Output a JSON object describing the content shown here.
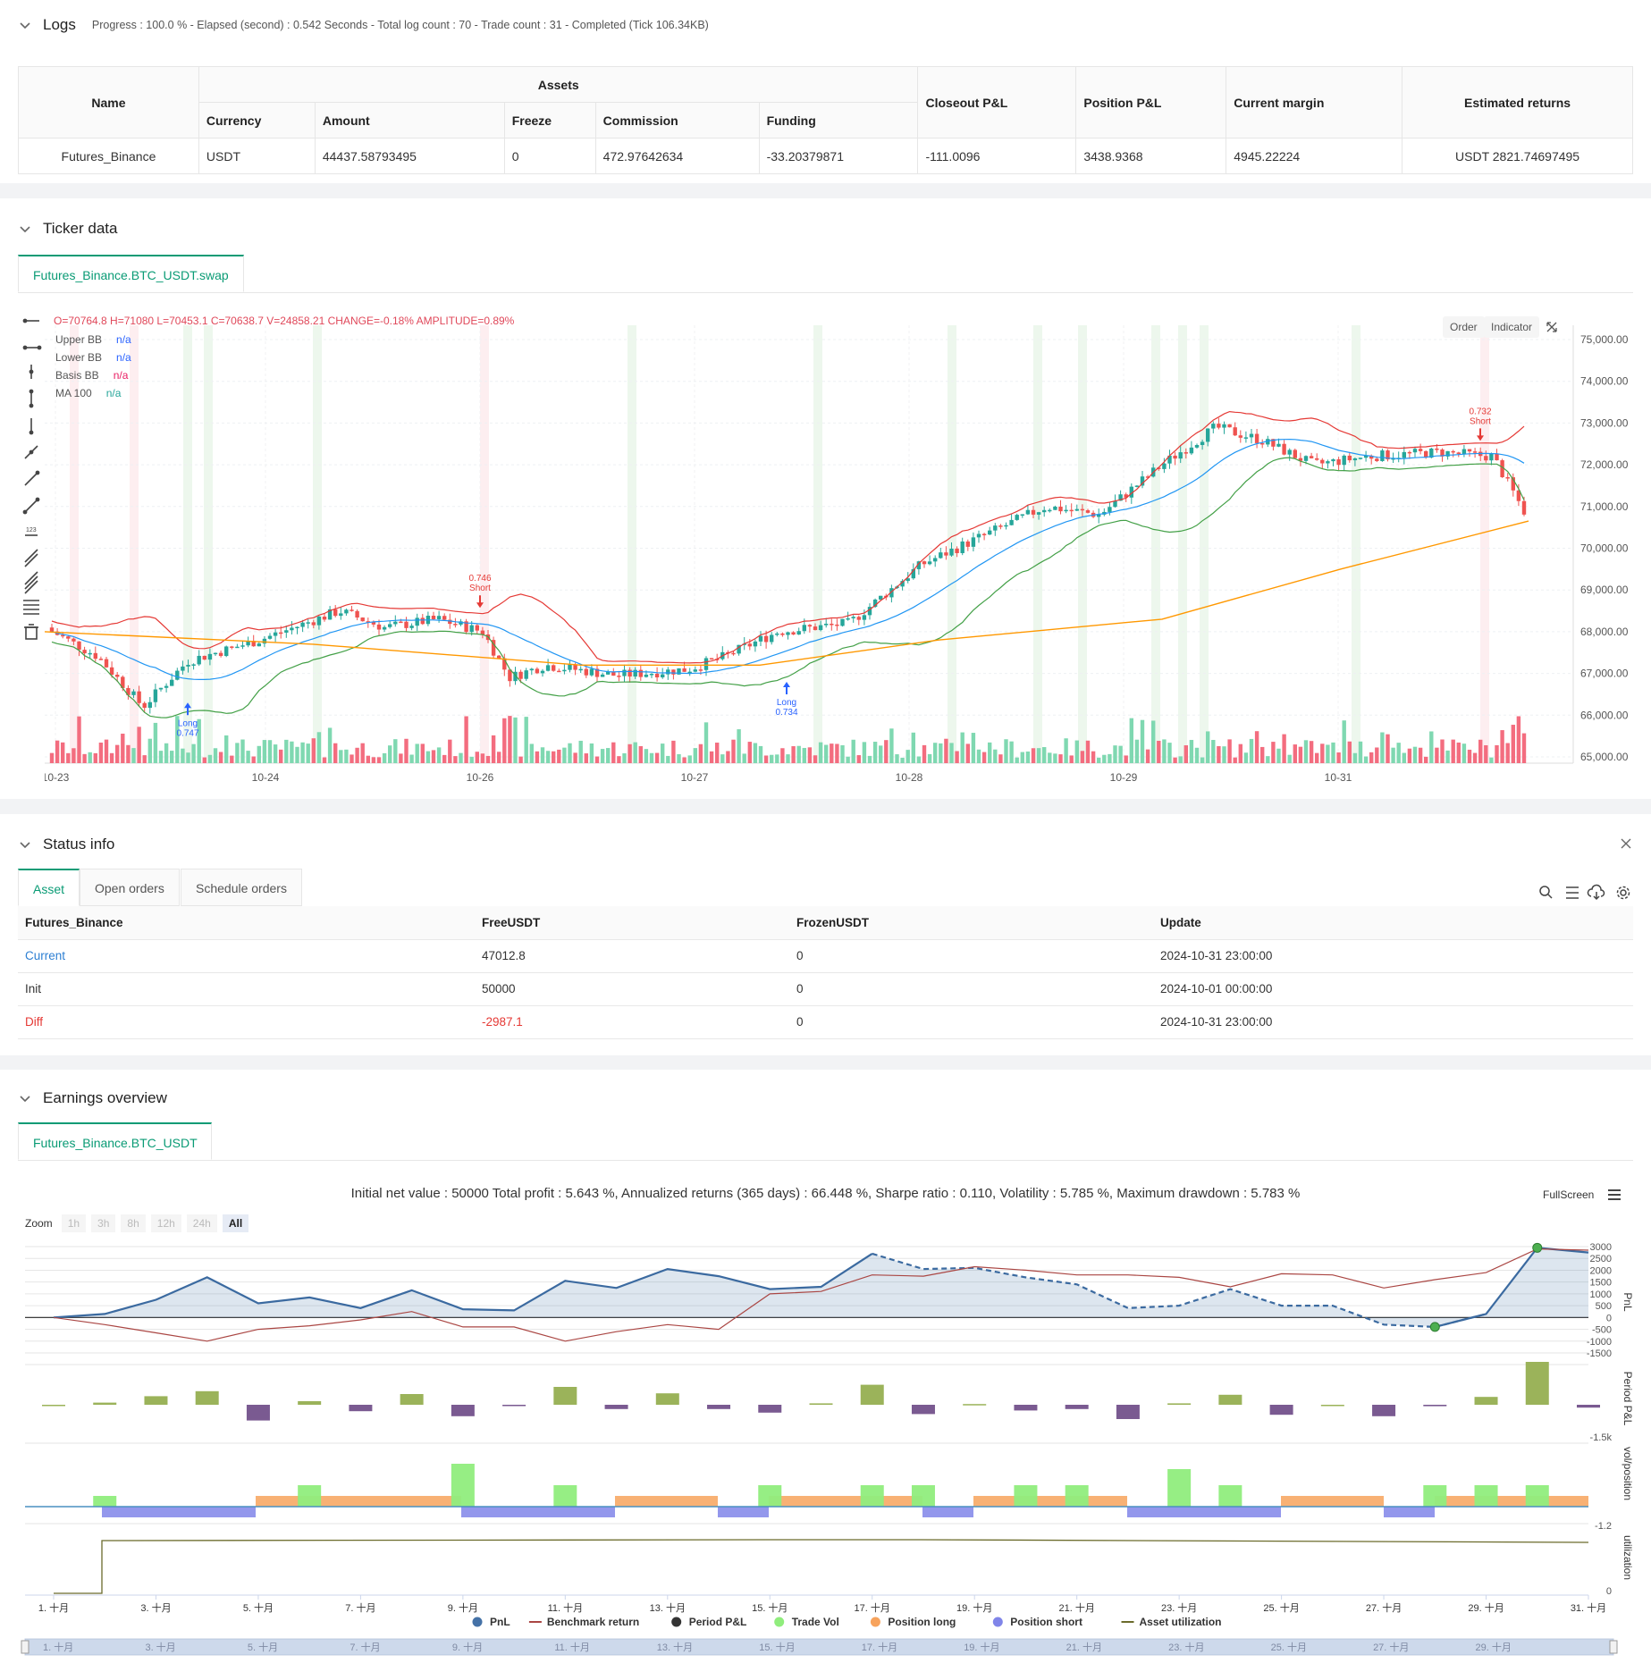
{
  "logs": {
    "title": "Logs",
    "meta": "Progress : 100.0 % - Elapsed (second) : 0.542  Seconds - Total log count : 70 - Trade count : 31 - Completed (Tick 106.34KB)",
    "headers": {
      "name": "Name",
      "assets": "Assets",
      "currency": "Currency",
      "amount": "Amount",
      "freeze": "Freeze",
      "commission": "Commission",
      "funding": "Funding",
      "closeout": "Closeout P&L",
      "position": "Position P&L",
      "margin": "Current margin",
      "returns": "Estimated returns"
    },
    "row": {
      "name": "Futures_Binance",
      "currency": "USDT",
      "amount": "44437.58793495",
      "freeze": "0",
      "commission": "472.97642634",
      "funding": "-33.20379871",
      "closeout": "-111.0096",
      "position": "3438.9368",
      "margin": "4945.22224",
      "returns": "USDT 2821.74697495"
    }
  },
  "ticker": {
    "title": "Ticker data",
    "tab": "Futures_Binance.BTC_USDT.swap",
    "ohlc": "O=70764.8  H=71080  L=70453.1  C=70638.7  V=24858.21  CHANGE=-0.18%  AMPLITUDE=0.89%",
    "legend": [
      {
        "name": "Upper BB",
        "value": "n/a",
        "color": "#2962ff"
      },
      {
        "name": "Lower BB",
        "value": "n/a",
        "color": "#2962ff"
      },
      {
        "name": "Basis BB",
        "value": "n/a",
        "color": "#e91e63"
      },
      {
        "name": "MA 100",
        "value": "n/a",
        "color": "#26a69a"
      }
    ],
    "buttons": {
      "order": "Order",
      "indicator": "Indicator"
    },
    "yticks": [
      "75,000.00",
      "74,000.00",
      "73,000.00",
      "72,000.00",
      "71,000.00",
      "70,000.00",
      "69,000.00",
      "68,000.00",
      "67,000.00",
      "66,000.00",
      "65,000.00"
    ],
    "xticks": [
      "10-23",
      "10-24",
      "10-26",
      "10-27",
      "10-28",
      "10-29",
      "10-31"
    ],
    "markers": [
      {
        "label": "Long",
        "value": "0.747"
      },
      {
        "label": "Short",
        "value": "0.746"
      },
      {
        "label": "Long",
        "value": "0.734"
      },
      {
        "label": "Short",
        "value": "0.732"
      }
    ]
  },
  "status": {
    "title": "Status info",
    "tabs": [
      "Asset",
      "Open orders",
      "Schedule orders"
    ],
    "headers": [
      "Futures_Binance",
      "FreeUSDT",
      "FrozenUSDT",
      "Update"
    ],
    "rows": [
      {
        "label": "Current",
        "free": "47012.8",
        "frozen": "0",
        "update": "2024-10-31 23:00:00"
      },
      {
        "label": "Init",
        "free": "50000",
        "frozen": "0",
        "update": "2024-10-01 00:00:00"
      },
      {
        "label": "Diff",
        "free": "-2987.1",
        "frozen": "0",
        "update": "2024-10-31 23:00:00"
      }
    ]
  },
  "earnings": {
    "title": "Earnings overview",
    "tab": "Futures_Binance.BTC_USDT",
    "summary": "Initial net value : 50000  Total profit : 5.643 %, Annualized returns (365 days) : 66.448 %, Sharpe ratio : 0.110, Volatility : 5.785 %, Maximum drawdown : 5.783 %",
    "fullscreen": "FullScreen",
    "zoom_label": "Zoom",
    "zoom_options": [
      "1h",
      "3h",
      "8h",
      "12h",
      "24h",
      "All"
    ],
    "pnl_ticks": [
      "3000",
      "2500",
      "2000",
      "1500",
      "1000",
      "500",
      "0",
      "-500",
      "-1000",
      "-1500"
    ],
    "period_tick": "-1.5k",
    "vol_tick": "-1.2",
    "util_tick": "0",
    "axis_titles": [
      "PnL",
      "Period P&L",
      "vol/position",
      "utilization"
    ],
    "xticks": [
      "1. 十月",
      "3. 十月",
      "5. 十月",
      "7. 十月",
      "9. 十月",
      "11. 十月",
      "13. 十月",
      "15. 十月",
      "17. 十月",
      "19. 十月",
      "21. 十月",
      "23. 十月",
      "25. 十月",
      "27. 十月",
      "29. 十月",
      "31. 十月"
    ],
    "nav_ticks": [
      "1. 十月",
      "3. 十月",
      "5. 十月",
      "7. 十月",
      "9. 十月",
      "11. 十月",
      "13. 十月",
      "15. 十月",
      "17. 十月",
      "19. 十月",
      "21. 十月",
      "23. 十月",
      "25. 十月",
      "27. 十月",
      "29. 十月"
    ],
    "legend": [
      {
        "name": "PnL",
        "color": "#4572a7"
      },
      {
        "name": "Benchmark return",
        "color": "#aa4643"
      },
      {
        "name": "Period P&L",
        "color": "#333333"
      },
      {
        "name": "Trade Vol",
        "color": "#90ed7d"
      },
      {
        "name": "Position long",
        "color": "#f7a35c"
      },
      {
        "name": "Position short",
        "color": "#8085e9"
      },
      {
        "name": "Asset utilization",
        "color": "#6b6b2b"
      }
    ]
  },
  "chart_data": [
    {
      "type": "line",
      "title": "",
      "xlabel": "",
      "ylabel": "PnL",
      "ylim": [
        -1500,
        3000
      ],
      "x": [
        "1. 十月",
        "2. 十月",
        "3. 十月",
        "4. 十月",
        "5. 十月",
        "6. 十月",
        "7. 十月",
        "8. 十月",
        "9. 十月",
        "10. 十月",
        "11. 十月",
        "12. 十月",
        "13. 十月",
        "14. 十月",
        "15. 十月",
        "16. 十月",
        "17. 十月",
        "18. 十月",
        "19. 十月",
        "20. 十月",
        "21. 十月",
        "22. 十月",
        "23. 十月",
        "24. 十月",
        "25. 十月",
        "26. 十月",
        "27. 十月",
        "28. 十月",
        "29. 十月",
        "30. 十月",
        "31. 十月"
      ],
      "series": [
        {
          "name": "PnL",
          "values": [
            0,
            150,
            750,
            1700,
            600,
            850,
            400,
            1150,
            350,
            300,
            1550,
            1250,
            2050,
            1750,
            1200,
            1300,
            2700,
            2050,
            2100,
            1700,
            1400,
            400,
            500,
            1200,
            500,
            500,
            -300,
            -400,
            150,
            2950,
            2750
          ]
        },
        {
          "name": "Benchmark return",
          "values": [
            0,
            -300,
            -650,
            -1000,
            -500,
            -350,
            -100,
            250,
            -400,
            -400,
            -1000,
            -600,
            -300,
            -500,
            1000,
            1100,
            1800,
            1750,
            2150,
            2000,
            1800,
            1800,
            1700,
            1300,
            1850,
            1800,
            1250,
            1600,
            1900,
            2900,
            2850
          ]
        }
      ]
    }
  ]
}
